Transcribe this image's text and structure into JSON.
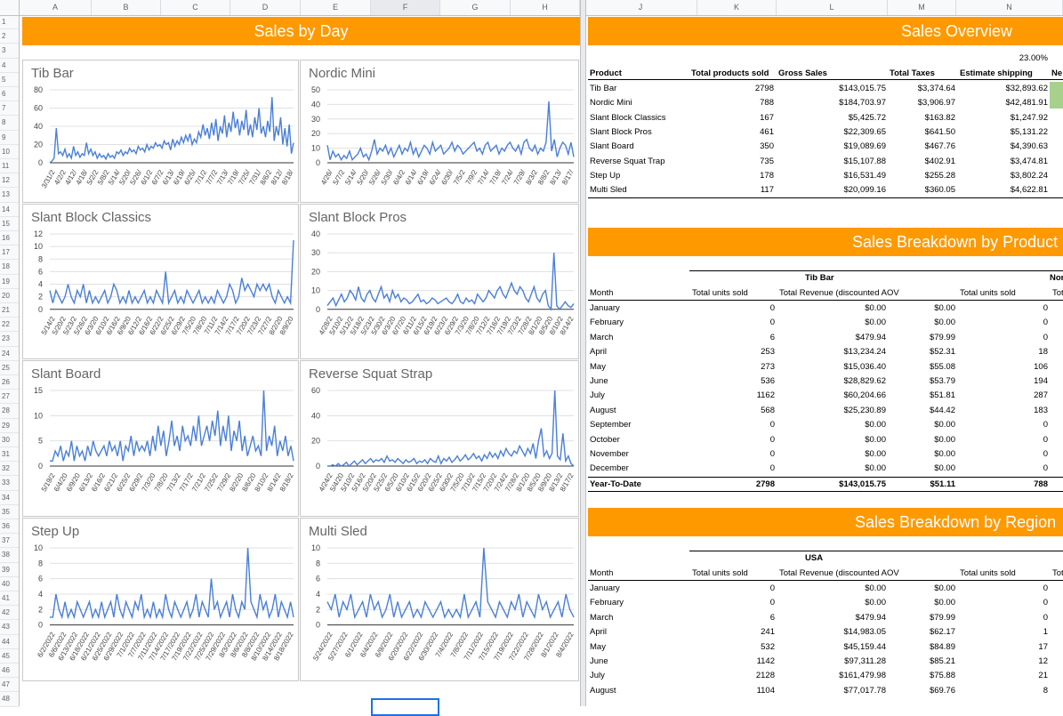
{
  "grid": {
    "columns": [
      "A",
      "B",
      "C",
      "D",
      "E",
      "F",
      "G",
      "H",
      "I",
      "J",
      "K",
      "L",
      "M",
      "N"
    ],
    "rows": [
      "1",
      "2",
      "3",
      "4",
      "5",
      "6",
      "7",
      "8",
      "9",
      "10",
      "11",
      "12",
      "13",
      "14",
      "15",
      "16",
      "17",
      "18",
      "19",
      "20",
      "21",
      "22",
      "23",
      "24",
      "25",
      "26",
      "27",
      "28",
      "29",
      "30",
      "31",
      "32",
      "33",
      "34",
      "35",
      "36",
      "37",
      "38",
      "39",
      "40",
      "41",
      "42",
      "43",
      "44",
      "45",
      "46",
      "47",
      "48"
    ]
  },
  "banners": {
    "sales_by_day": "Sales by Day",
    "sales_overview": "Sales Overview",
    "breakdown_product": "Sales Breakdown by Product",
    "breakdown_region": "Sales Breakdown by Region"
  },
  "overview": {
    "tax_rate": "23.00%",
    "headers": [
      "Product",
      "Total products sold",
      "Gross Sales",
      "Total Taxes",
      "Estimate shipping",
      "Ne"
    ],
    "rows": [
      [
        "Tib Bar",
        "2798",
        "$143,015.75",
        "$3,374.64",
        "$32,893.62"
      ],
      [
        "Nordic Mini",
        "788",
        "$184,703.97",
        "$3,906.97",
        "$42,481.91"
      ],
      [
        "Slant Block Classics",
        "167",
        "$5,425.72",
        "$163.82",
        "$1,247.92"
      ],
      [
        "Slant Block Pros",
        "461",
        "$22,309.65",
        "$641.50",
        "$5,131.22"
      ],
      [
        "Slant Board",
        "350",
        "$19,089.69",
        "$467.76",
        "$4,390.63"
      ],
      [
        "Reverse Squat Trap",
        "735",
        "$15,107.88",
        "$402.91",
        "$3,474.81"
      ],
      [
        "Step Up",
        "178",
        "$16,531.49",
        "$255.28",
        "$3,802.24"
      ],
      [
        "Multi Sled",
        "117",
        "$20,099.16",
        "$360.05",
        "$4,622.81"
      ]
    ]
  },
  "product_breakdown": {
    "group1": "Tib Bar",
    "group2": "Nor",
    "headers": [
      "Month",
      "Total units sold",
      "Total Revenue (discounted AOV",
      "",
      "Total units sold",
      "Tot"
    ],
    "rows": [
      [
        "January",
        "0",
        "$0.00",
        "$0.00",
        "0"
      ],
      [
        "February",
        "0",
        "$0.00",
        "$0.00",
        "0"
      ],
      [
        "March",
        "6",
        "$479.94",
        "$79.99",
        "0"
      ],
      [
        "April",
        "253",
        "$13,234.24",
        "$52.31",
        "18"
      ],
      [
        "May",
        "273",
        "$15,036.40",
        "$55.08",
        "106"
      ],
      [
        "June",
        "536",
        "$28,829.62",
        "$53.79",
        "194"
      ],
      [
        "July",
        "1162",
        "$60,204.66",
        "$51.81",
        "287"
      ],
      [
        "August",
        "568",
        "$25,230.89",
        "$44.42",
        "183"
      ],
      [
        "September",
        "0",
        "$0.00",
        "$0.00",
        "0"
      ],
      [
        "October",
        "0",
        "$0.00",
        "$0.00",
        "0"
      ],
      [
        "November",
        "0",
        "$0.00",
        "$0.00",
        "0"
      ],
      [
        "December",
        "0",
        "$0.00",
        "$0.00",
        "0"
      ]
    ],
    "total": [
      "Year-To-Date",
      "2798",
      "$143,015.75",
      "$51.11",
      "788"
    ]
  },
  "region_breakdown": {
    "group1": "USA",
    "headers": [
      "Month",
      "Total units sold",
      "Total Revenue (discounted AOV",
      "",
      "Total units sold",
      "Tot"
    ],
    "rows": [
      [
        "January",
        "0",
        "$0.00",
        "$0.00",
        "0"
      ],
      [
        "February",
        "0",
        "$0.00",
        "$0.00",
        "0"
      ],
      [
        "March",
        "6",
        "$479.94",
        "$79.99",
        "0"
      ],
      [
        "April",
        "241",
        "$14,983.05",
        "$62.17",
        "1"
      ],
      [
        "May",
        "532",
        "$45,159.44",
        "$84.89",
        "17"
      ],
      [
        "June",
        "1142",
        "$97,311.28",
        "$85.21",
        "12"
      ],
      [
        "July",
        "2128",
        "$161,479.98",
        "$75.88",
        "21"
      ],
      [
        "August",
        "1104",
        "$77,017.78",
        "$69.76",
        "8"
      ]
    ]
  },
  "chart_data": [
    {
      "type": "line",
      "title": "Tib Bar",
      "ylim": [
        0,
        80
      ],
      "yticks": [
        "80",
        "60",
        "40",
        "20",
        "0"
      ],
      "xticks": [
        "3/31/2",
        "4/2/2",
        "4/12/",
        "4/18/",
        "5/2/2",
        "5/8/2",
        "5/14/",
        "5/20/",
        "5/26/",
        "6/1/2",
        "6/7/2",
        "6/13/",
        "6/19/",
        "6/25/",
        "7/1/2",
        "7/7/2",
        "7/13/",
        "7/19/",
        "7/25/",
        "7/31/",
        "8/6/2",
        "8/12/",
        "8/18/"
      ],
      "values": [
        0,
        2,
        5,
        38,
        10,
        12,
        8,
        15,
        6,
        10,
        5,
        18,
        8,
        12,
        6,
        10,
        8,
        22,
        10,
        15,
        8,
        12,
        5,
        10,
        6,
        8,
        4,
        10,
        6,
        8,
        5,
        12,
        10,
        14,
        8,
        12,
        10,
        16,
        12,
        14,
        10,
        18,
        14,
        16,
        12,
        20,
        14,
        18,
        16,
        22,
        18,
        20,
        16,
        24,
        20,
        22,
        14,
        26,
        18,
        24,
        20,
        28,
        22,
        30,
        24,
        32,
        20,
        26,
        22,
        34,
        28,
        42,
        30,
        38,
        26,
        44,
        30,
        48,
        24,
        40,
        32,
        52,
        28,
        44,
        34,
        56,
        38,
        48,
        30,
        46,
        36,
        58,
        30,
        42,
        28,
        50,
        36,
        60,
        32,
        40,
        28,
        46,
        34,
        72,
        24,
        40,
        30,
        50,
        20,
        38,
        18,
        42,
        10,
        22
      ]
    },
    {
      "type": "line",
      "title": "Nordic Mini",
      "ylim": [
        0,
        50
      ],
      "yticks": [
        "50",
        "40",
        "30",
        "20",
        "10",
        "0"
      ],
      "xticks": [
        "4/26/",
        "5/7/2",
        "5/14/",
        "5/20/",
        "5/26/",
        "5/30/",
        "6/4/2",
        "6/14/",
        "6/19/",
        "6/24/",
        "6/30/",
        "7/5/2",
        "7/9/2",
        "7/14/",
        "7/19/",
        "7/24/",
        "7/29/",
        "8/3/2",
        "8/8/2",
        "8/13/",
        "8/17/"
      ],
      "values": [
        12,
        2,
        8,
        4,
        6,
        2,
        5,
        3,
        8,
        2,
        4,
        6,
        10,
        4,
        6,
        2,
        8,
        16,
        6,
        10,
        8,
        12,
        6,
        10,
        4,
        8,
        12,
        6,
        10,
        8,
        14,
        6,
        10,
        4,
        8,
        12,
        10,
        6,
        14,
        8,
        10,
        12,
        6,
        8,
        10,
        14,
        8,
        12,
        10,
        6,
        8,
        10,
        12,
        14,
        8,
        10,
        6,
        12,
        14,
        8,
        10,
        12,
        6,
        10,
        8,
        12,
        14,
        10,
        8,
        12,
        6,
        14,
        16,
        10,
        8,
        12,
        6,
        10,
        8,
        14,
        42,
        8,
        16,
        4,
        10,
        14,
        12,
        6,
        14,
        4
      ]
    },
    {
      "type": "line",
      "title": "Slant Block Classics",
      "ylim": [
        0,
        12
      ],
      "yticks": [
        "12",
        "10",
        "8",
        "6",
        "4",
        "2",
        "0"
      ],
      "xticks": [
        "5/14/2",
        "5/20/2",
        "5/23/2",
        "5/26/2",
        "6/3/20",
        "6/10/2",
        "6/16/2",
        "6/9/20",
        "6/12/2",
        "6/16/2",
        "6/22/2",
        "6/25/2",
        "6/29/2",
        "7/5/20",
        "7/8/20",
        "7/11/2",
        "7/14/2",
        "7/17/2",
        "7/20/2",
        "7/23/2",
        "7/27/2",
        "8/2/20",
        "8/9/20"
      ],
      "values": [
        3,
        1,
        3,
        2,
        1,
        2,
        4,
        2,
        1,
        3,
        2,
        4,
        1,
        3,
        1,
        2,
        1,
        2,
        3,
        1,
        2,
        4,
        3,
        1,
        2,
        1,
        3,
        1,
        2,
        1,
        2,
        3,
        1,
        2,
        1,
        3,
        2,
        1,
        6,
        1,
        2,
        3,
        1,
        2,
        1,
        3,
        2,
        1,
        2,
        3,
        1,
        2,
        1,
        2,
        1,
        3,
        2,
        1,
        2,
        4,
        3,
        1,
        2,
        5,
        3,
        4,
        3,
        2,
        4,
        3,
        4,
        3,
        4,
        2,
        1,
        3,
        2,
        1,
        2,
        1,
        11
      ]
    },
    {
      "type": "line",
      "title": "Slant Block Pros",
      "ylim": [
        0,
        40
      ],
      "yticks": [
        "40",
        "30",
        "20",
        "10",
        "0"
      ],
      "xticks": [
        "4/28/2",
        "5/10/2",
        "5/12/2",
        "5/18/2",
        "5/23/2",
        "5/30/2",
        "6/3/20",
        "6/7/20",
        "6/11/2",
        "6/15/2",
        "6/19/2",
        "6/23/2",
        "6/29/2",
        "7/3/20",
        "7/8/20",
        "7/12/2",
        "7/16/2",
        "7/19/2",
        "7/23/2",
        "7/28/2",
        "8/1/20",
        "8/5/20",
        "8/10/2",
        "8/14/2"
      ],
      "values": [
        2,
        4,
        6,
        2,
        5,
        8,
        4,
        6,
        10,
        8,
        5,
        12,
        6,
        4,
        8,
        10,
        6,
        4,
        8,
        12,
        6,
        8,
        4,
        10,
        6,
        8,
        4,
        6,
        5,
        3,
        4,
        6,
        8,
        4,
        5,
        3,
        4,
        6,
        5,
        3,
        4,
        5,
        6,
        4,
        3,
        5,
        8,
        4,
        3,
        6,
        4,
        5,
        3,
        8,
        6,
        4,
        6,
        10,
        8,
        6,
        10,
        12,
        8,
        6,
        10,
        14,
        10,
        8,
        12,
        10,
        6,
        4,
        8,
        12,
        6,
        4,
        8,
        10,
        2,
        0,
        30,
        2,
        0,
        2,
        4,
        2,
        1,
        3
      ]
    },
    {
      "type": "line",
      "title": "Slant Board",
      "ylim": [
        0,
        15
      ],
      "yticks": [
        "15",
        "10",
        "5",
        "0"
      ],
      "xticks": [
        "5/19/2",
        "6/4/20",
        "6/9/20",
        "6/13/2",
        "6/16/2",
        "6/21/2",
        "6/25/2",
        "6/29/2",
        "7/3/20",
        "7/8/20",
        "7/13/2",
        "7/17/2",
        "7/21/2",
        "7/25/2",
        "7/29/2",
        "8/2/20",
        "8/6/20",
        "8/10/2",
        "8/14/2",
        "8/18/2"
      ],
      "values": [
        1,
        1,
        3,
        2,
        4,
        1,
        3,
        2,
        5,
        1,
        4,
        2,
        3,
        1,
        4,
        2,
        5,
        3,
        2,
        3,
        4,
        2,
        5,
        3,
        4,
        2,
        5,
        1,
        4,
        3,
        6,
        2,
        5,
        3,
        4,
        3,
        5,
        2,
        6,
        3,
        8,
        4,
        7,
        2,
        5,
        9,
        4,
        6,
        3,
        8,
        5,
        6,
        4,
        8,
        5,
        10,
        4,
        6,
        8,
        5,
        9,
        6,
        11,
        4,
        8,
        5,
        10,
        3,
        7,
        5,
        9,
        3,
        6,
        2,
        4,
        6,
        3,
        4,
        2,
        15,
        3,
        6,
        4,
        8,
        2,
        5,
        3,
        6,
        2,
        4,
        1
      ]
    },
    {
      "type": "line",
      "title": "Reverse Squat Strap",
      "ylim": [
        0,
        60
      ],
      "yticks": [
        "60",
        "40",
        "20",
        "0"
      ],
      "xticks": [
        "4/24/2",
        "5/4/20",
        "5/10/2",
        "5/16/2",
        "5/20/2",
        "5/25/2",
        "6/5/20",
        "6/10/2",
        "6/15/2",
        "6/20/2",
        "6/25/2",
        "6/30/2",
        "7/5/20",
        "7/10/2",
        "7/15/2",
        "7/20/2",
        "7/24/2",
        "7/28/2",
        "8/1/20",
        "8/5/20",
        "8/9/20",
        "8/13/2",
        "8/17/2"
      ],
      "values": [
        0,
        0,
        1,
        0,
        2,
        0,
        1,
        3,
        0,
        2,
        4,
        1,
        3,
        5,
        2,
        4,
        6,
        3,
        5,
        4,
        6,
        3,
        8,
        4,
        5,
        3,
        6,
        4,
        2,
        5,
        3,
        4,
        6,
        2,
        4,
        3,
        5,
        2,
        6,
        4,
        3,
        8,
        2,
        6,
        4,
        7,
        3,
        5,
        8,
        4,
        6,
        9,
        5,
        7,
        10,
        6,
        8,
        4,
        9,
        6,
        11,
        7,
        10,
        6,
        12,
        8,
        14,
        10,
        8,
        12,
        10,
        16,
        12,
        8,
        14,
        10,
        18,
        6,
        20,
        30,
        8,
        12,
        6,
        10,
        60,
        8,
        5,
        26,
        4,
        8,
        2,
        0
      ]
    },
    {
      "type": "line",
      "title": "Step Up",
      "ylim": [
        0,
        10
      ],
      "yticks": [
        "10",
        "8",
        "6",
        "4",
        "2",
        "0"
      ],
      "xticks": [
        "6/2/2022",
        "6/6/2022",
        "6/13/2022",
        "6/18/2022",
        "6/21/2022",
        "6/25/2022",
        "6/29/2022",
        "7/1/2022",
        "7/7/2022",
        "7/11/2022",
        "7/14/2022",
        "7/17/2022",
        "7/19/2022",
        "7/22/2022",
        "7/25/2022",
        "7/29/2022",
        "8/3/2022",
        "8/6/2022",
        "8/8/2022",
        "8/10/2022",
        "8/14/2022",
        "8/18/2022"
      ],
      "values": [
        1,
        1,
        4,
        2,
        1,
        3,
        1,
        2,
        1,
        3,
        2,
        1,
        2,
        3,
        1,
        2,
        1,
        3,
        1,
        2,
        3,
        1,
        4,
        2,
        1,
        3,
        2,
        1,
        3,
        2,
        4,
        1,
        2,
        1,
        3,
        1,
        2,
        1,
        4,
        2,
        1,
        3,
        2,
        1,
        2,
        3,
        1,
        2,
        4,
        1,
        3,
        2,
        1,
        6,
        2,
        3,
        1,
        2,
        3,
        1,
        4,
        2,
        1,
        3,
        2,
        10,
        3,
        2,
        1,
        4,
        2,
        3,
        1,
        2,
        4,
        1,
        3,
        2,
        1,
        3,
        1
      ]
    },
    {
      "type": "line",
      "title": "Multi Sled",
      "ylim": [
        0,
        10
      ],
      "yticks": [
        "10",
        "8",
        "6",
        "4",
        "2",
        "0"
      ],
      "xticks": [
        "5/24/2022",
        "5/27/2022",
        "6/1/2022",
        "6/4/2022",
        "6/9/2022",
        "6/20/2022",
        "6/22/2022",
        "6/30/2022",
        "7/4/2022",
        "7/8/2022",
        "7/11/2022",
        "7/15/2022",
        "7/19/2022",
        "7/22/2022",
        "7/28/2022",
        "8/1/2022",
        "8/4/2022"
      ],
      "values": [
        3,
        2,
        4,
        1,
        3,
        2,
        4,
        1,
        2,
        3,
        1,
        4,
        2,
        3,
        1,
        2,
        4,
        1,
        3,
        1,
        2,
        3,
        1,
        2,
        1,
        3,
        2,
        1,
        2,
        3,
        1,
        2,
        1,
        2,
        1,
        4,
        1,
        2,
        3,
        1,
        10,
        3,
        2,
        1,
        3,
        2,
        1,
        3,
        2,
        4,
        1,
        3,
        2,
        1,
        4,
        2,
        3,
        1,
        2,
        3,
        1,
        4,
        2,
        1
      ]
    }
  ]
}
